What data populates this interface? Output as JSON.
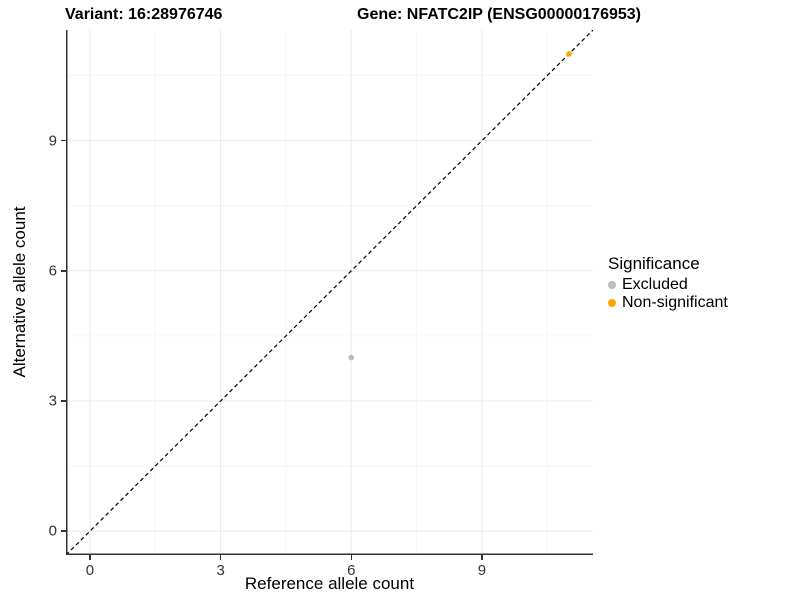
{
  "titles": {
    "variant": "Variant: 16:28976746",
    "gene": "Gene: NFATC2IP (ENSG00000176953)"
  },
  "chart_data": {
    "type": "scatter",
    "xlabel": "Reference allele count",
    "ylabel": "Alternative allele count",
    "xlim": [
      -0.55,
      11.55
    ],
    "ylim": [
      -0.55,
      11.55
    ],
    "major_ticks": [
      0,
      3,
      6,
      9
    ],
    "minor_ticks": [
      1.5,
      4.5,
      7.5,
      10.5
    ],
    "grid": "on",
    "legend": {
      "title": "Significance",
      "position": "right"
    },
    "identity_line": {
      "style": "dashed",
      "from": [
        -0.55,
        -0.55
      ],
      "to": [
        11.55,
        11.55
      ],
      "color": "#000000"
    },
    "series": [
      {
        "name": "Excluded",
        "color": "#BEBEBE",
        "points": [
          [
            6,
            4
          ]
        ]
      },
      {
        "name": "Non-significant",
        "color": "#FFA500",
        "points": [
          [
            11,
            11
          ]
        ]
      }
    ]
  },
  "colors": {
    "grid_major": "#EBEBEB",
    "grid_minor": "#F6F6F6",
    "axis_line": "#333333",
    "tick_label": "#333333",
    "excluded": "#BEBEBE",
    "non_significant": "#FFA500"
  }
}
